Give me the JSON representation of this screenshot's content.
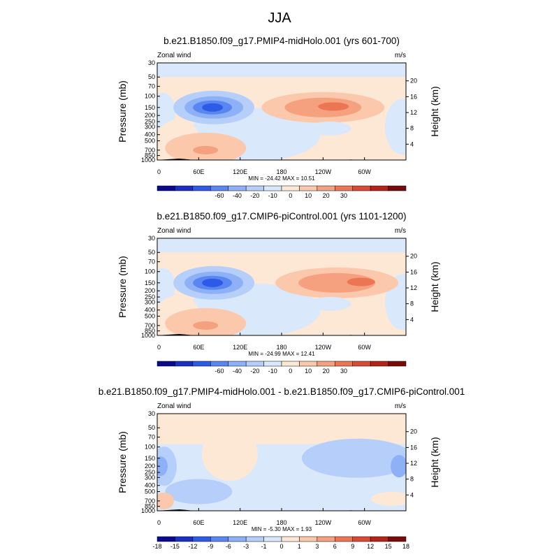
{
  "figure": {
    "title": "JJA"
  },
  "chart_data": [
    {
      "type": "heatmap",
      "title": "b.e21.B1850.f09_g17.PMIP4-midHolo.001 (yrs 601-700)",
      "variable": "Zonal wind",
      "units": "m/s",
      "ylabel": "Pressure (mb)",
      "ylabel_right": "Height (km)",
      "x_ticks": [
        "0",
        "60E",
        "120E",
        "180",
        "120W",
        "60W"
      ],
      "y_ticks": [
        "30",
        "50",
        "70",
        "100",
        "150",
        "200",
        "250",
        "300",
        "400",
        "500",
        "700",
        "850",
        "1000"
      ],
      "y_ticks_right": [
        "20",
        "16",
        "12",
        "8",
        "4"
      ],
      "stats": "MIN = -24.42  MAX =  10.51",
      "colorbar_ticks": [
        "-60",
        "-40",
        "-20",
        "-10",
        "0",
        "10",
        "20",
        "30"
      ],
      "colorbar_colors": [
        "#0a0a8e",
        "#1a2fc4",
        "#2e5be6",
        "#5a86f2",
        "#8db0f7",
        "#b6cefa",
        "#d9e8fb",
        "#fde8d6",
        "#fbc8ac",
        "#f5a07e",
        "#ec7654",
        "#d84a34",
        "#b42419",
        "#7a0a0a"
      ],
      "features": [
        {
          "name": "jet-core-min",
          "approx_lon": 80,
          "approx_p": 150,
          "value": -24.42
        },
        {
          "name": "westerly-max",
          "approx_lon": 230,
          "approx_p": 150,
          "value": 10.51
        }
      ]
    },
    {
      "type": "heatmap",
      "title": "b.e21.B1850.f09_g17.CMIP6-piControl.001 (yrs 1101-1200)",
      "variable": "Zonal wind",
      "units": "m/s",
      "ylabel": "Pressure (mb)",
      "ylabel_right": "Height (km)",
      "x_ticks": [
        "0",
        "60E",
        "120E",
        "180",
        "120W",
        "60W"
      ],
      "y_ticks": [
        "30",
        "50",
        "70",
        "100",
        "150",
        "200",
        "250",
        "300",
        "400",
        "500",
        "700",
        "850",
        "1000"
      ],
      "y_ticks_right": [
        "20",
        "16",
        "12",
        "8",
        "4"
      ],
      "stats": "MIN = -24.99  MAX =  12.41",
      "colorbar_ticks": [
        "-60",
        "-40",
        "-20",
        "-10",
        "0",
        "10",
        "20",
        "30"
      ],
      "colorbar_colors": [
        "#0a0a8e",
        "#1a2fc4",
        "#2e5be6",
        "#5a86f2",
        "#8db0f7",
        "#b6cefa",
        "#d9e8fb",
        "#fde8d6",
        "#fbc8ac",
        "#f5a07e",
        "#ec7654",
        "#d84a34",
        "#b42419",
        "#7a0a0a"
      ],
      "features": [
        {
          "name": "jet-core-min",
          "approx_lon": 80,
          "approx_p": 150,
          "value": -24.99
        },
        {
          "name": "westerly-max",
          "approx_lon": 295,
          "approx_p": 150,
          "value": 12.41
        }
      ]
    },
    {
      "type": "heatmap",
      "title": "b.e21.B1850.f09_g17.PMIP4-midHolo.001 - b.e21.B1850.f09_g17.CMIP6-piControl.001",
      "variable": "Zonal wind",
      "units": "m/s",
      "ylabel": "Pressure (mb)",
      "ylabel_right": "Height (km)",
      "x_ticks": [
        "0",
        "60E",
        "120E",
        "180",
        "120W",
        "60W"
      ],
      "y_ticks": [
        "30",
        "50",
        "70",
        "100",
        "150",
        "200",
        "250",
        "300",
        "400",
        "500",
        "700",
        "850",
        "1000"
      ],
      "y_ticks_right": [
        "20",
        "16",
        "12",
        "8",
        "4"
      ],
      "stats": "MIN = -5.30  MAX =  1.93",
      "colorbar_ticks": [
        "-18",
        "-15",
        "-12",
        "-9",
        "-6",
        "-3",
        "-1",
        "0",
        "1",
        "3",
        "6",
        "9",
        "12",
        "15",
        "18"
      ],
      "colorbar_colors": [
        "#0a0a8e",
        "#1a2fc4",
        "#2e5be6",
        "#5a86f2",
        "#8db0f7",
        "#b6cefa",
        "#d9e8fb",
        "#fde8d6",
        "#fbc8ac",
        "#f5a07e",
        "#ec7654",
        "#d84a34",
        "#b42419",
        "#7a0a0a"
      ],
      "features": [
        {
          "name": "diff-min",
          "approx_lon": 5,
          "approx_p": 200,
          "value": -5.3
        },
        {
          "name": "diff-max",
          "approx_lon": 100,
          "approx_p": 120,
          "value": 1.93
        }
      ]
    }
  ]
}
